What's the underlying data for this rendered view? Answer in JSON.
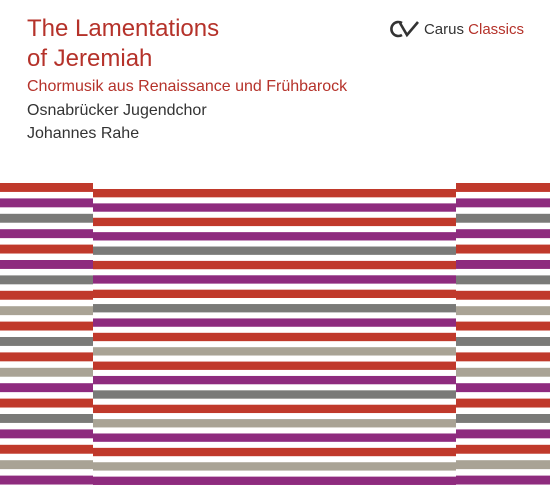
{
  "title_line1": "The Lamentations",
  "title_line2": "of Jeremiah",
  "subtitle": "Chormusik aus Renaissance und Frühbarock",
  "performers": [
    "Osnabrücker Jugendchor",
    "Johannes Rahe"
  ],
  "label": {
    "name": "Carus",
    "series": "Classics",
    "logo_icon": "carus-logo-icon"
  },
  "colors": {
    "accent": "#b5322a",
    "text": "#333333",
    "red": "#c0392b",
    "purple": "#8e2b7e",
    "gray": "#7a7a78",
    "taupe": "#a9a395"
  },
  "stripe_pattern": {
    "side": [
      "red",
      "purple",
      "gray",
      "purple",
      "red",
      "purple",
      "gray",
      "red",
      "taupe",
      "red",
      "gray",
      "red",
      "taupe",
      "purple",
      "red",
      "gray",
      "purple",
      "red",
      "taupe",
      "purple"
    ],
    "center": [
      "red",
      "purple",
      "red",
      "purple",
      "gray",
      "red",
      "purple",
      "red",
      "gray",
      "purple",
      "red",
      "taupe",
      "red",
      "purple",
      "gray",
      "red",
      "taupe",
      "purple",
      "red",
      "taupe",
      "purple"
    ]
  }
}
